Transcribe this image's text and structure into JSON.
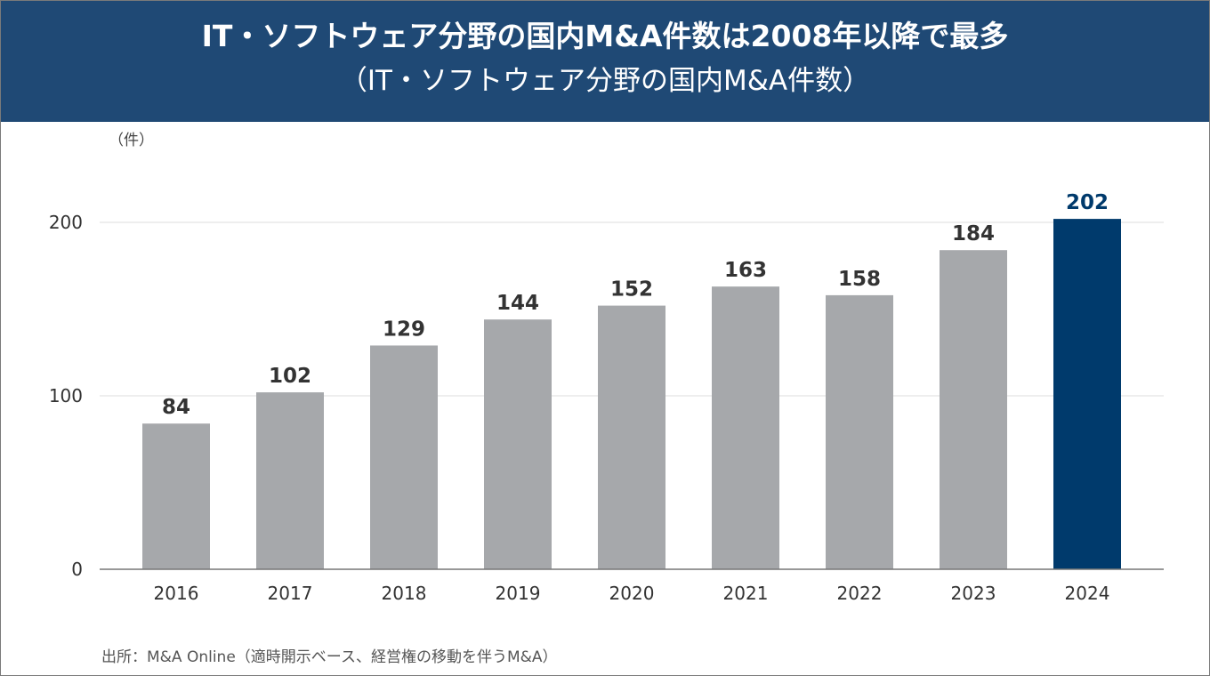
{
  "title": "IT・ソフトウェア分野の国内M&A件数は2008年以降で最多",
  "subtitle": "（IT・ソフトウェア分野の国内M&A件数）",
  "unit_label": "（件）",
  "source": "出所：M&A Online（適時開示ベース、経営権の移動を伴うM&A）",
  "colors": {
    "header_bg": "#1f4975",
    "bar_default": "#a6a8ab",
    "bar_highlight": "#003a6c",
    "label_default": "#333333",
    "label_highlight": "#003a6c"
  },
  "chart_data": {
    "type": "bar",
    "title": "IT・ソフトウェア分野の国内M&A件数は2008年以降で最多",
    "subtitle": "（IT・ソフトウェア分野の国内M&A件数）",
    "ylabel": "（件）",
    "xlabel": "",
    "categories": [
      "2016",
      "2017",
      "2018",
      "2019",
      "2020",
      "2021",
      "2022",
      "2023",
      "2024"
    ],
    "values": [
      84,
      102,
      129,
      144,
      152,
      163,
      158,
      184,
      202
    ],
    "highlight_category": "2024",
    "ylim": [
      0,
      200
    ],
    "yticks": [
      0,
      100,
      200
    ],
    "grid": true,
    "legend": "none"
  }
}
